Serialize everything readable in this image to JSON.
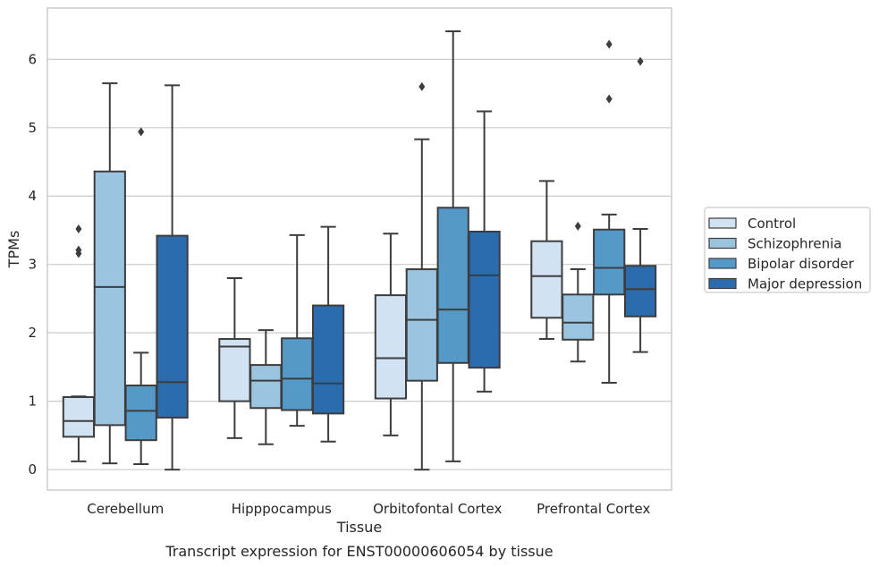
{
  "chart_data": {
    "type": "box",
    "title": "",
    "caption": "Transcript expression for ENST00000606054 by tissue",
    "xlabel": "Tissue",
    "ylabel": "TPMs",
    "ylim": [
      -0.3,
      6.75
    ],
    "yticks": [
      "0",
      "1",
      "2",
      "3",
      "4",
      "5",
      "6"
    ],
    "grid": "horizontal",
    "legend_position": "right",
    "categories": [
      "Cerebellum",
      "Hipppocampus",
      "Orbitofontal Cortex",
      "Prefrontal Cortex"
    ],
    "series": [
      {
        "name": "Control",
        "color": "#d1e2f2",
        "boxes": [
          {
            "whislo": 0.12,
            "q1": 0.48,
            "med": 0.71,
            "q3": 1.06,
            "whishi": 1.07,
            "fliers": [
              3.52,
              3.21,
              3.16
            ]
          },
          {
            "whislo": 0.46,
            "q1": 1.0,
            "med": 1.8,
            "q3": 1.91,
            "whishi": 2.8,
            "fliers": []
          },
          {
            "whislo": 0.5,
            "q1": 1.04,
            "med": 1.63,
            "q3": 2.55,
            "whishi": 3.45,
            "fliers": []
          },
          {
            "whislo": 1.91,
            "q1": 2.22,
            "med": 2.83,
            "q3": 3.34,
            "whishi": 4.22,
            "fliers": []
          }
        ]
      },
      {
        "name": "Schizophrenia",
        "color": "#9ac4df",
        "boxes": [
          {
            "whislo": 0.09,
            "q1": 0.65,
            "med": 2.67,
            "q3": 4.36,
            "whishi": 5.65,
            "fliers": []
          },
          {
            "whislo": 0.37,
            "q1": 0.9,
            "med": 1.3,
            "q3": 1.53,
            "whishi": 2.04,
            "fliers": []
          },
          {
            "whislo": 0.0,
            "q1": 1.3,
            "med": 2.19,
            "q3": 2.93,
            "whishi": 4.83,
            "fliers": [
              5.6
            ]
          },
          {
            "whislo": 1.58,
            "q1": 1.9,
            "med": 2.15,
            "q3": 2.56,
            "whishi": 2.93,
            "fliers": [
              3.56
            ]
          }
        ]
      },
      {
        "name": "Bipolar disorder",
        "color": "#5599c9",
        "boxes": [
          {
            "whislo": 0.08,
            "q1": 0.43,
            "med": 0.86,
            "q3": 1.23,
            "whishi": 1.71,
            "fliers": [
              4.94
            ]
          },
          {
            "whislo": 0.64,
            "q1": 0.87,
            "med": 1.33,
            "q3": 1.92,
            "whishi": 3.43,
            "fliers": []
          },
          {
            "whislo": 0.12,
            "q1": 1.56,
            "med": 2.34,
            "q3": 3.83,
            "whishi": 6.41,
            "fliers": []
          },
          {
            "whislo": 1.27,
            "q1": 2.56,
            "med": 2.95,
            "q3": 3.51,
            "whishi": 3.73,
            "fliers": [
              6.22,
              5.42
            ]
          }
        ]
      },
      {
        "name": "Major depression",
        "color": "#2a6cad",
        "boxes": [
          {
            "whislo": 0.0,
            "q1": 0.76,
            "med": 1.28,
            "q3": 3.42,
            "whishi": 5.62,
            "fliers": []
          },
          {
            "whislo": 0.41,
            "q1": 0.82,
            "med": 1.26,
            "q3": 2.4,
            "whishi": 3.55,
            "fliers": []
          },
          {
            "whislo": 1.14,
            "q1": 1.49,
            "med": 2.84,
            "q3": 3.48,
            "whishi": 5.24,
            "fliers": []
          },
          {
            "whislo": 1.72,
            "q1": 2.24,
            "med": 2.64,
            "q3": 2.98,
            "whishi": 3.52,
            "fliers": [
              5.97
            ]
          }
        ]
      }
    ]
  },
  "colors": {
    "grid": "#cccccc",
    "spine": "#cccccc",
    "line": "#3d3d3d",
    "legend_border": "#cccccc"
  }
}
